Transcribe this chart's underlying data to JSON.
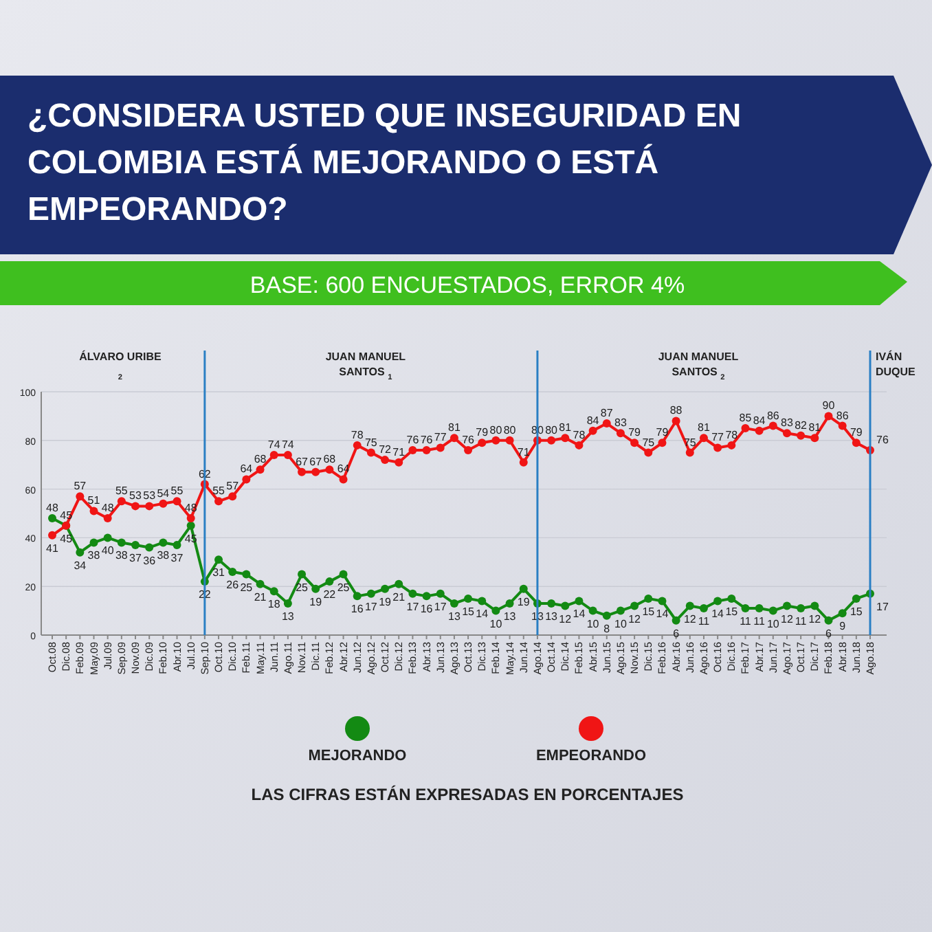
{
  "chart_data": {
    "type": "line",
    "title": "¿CONSIDERA USTED QUE INSEGURIDAD EN COLOMBIA ESTÁ MEJORANDO O ESTÁ EMPEORANDO?",
    "subtitle": "BASE: 600 ENCUESTADOS, ERROR 4%",
    "categories": [
      "Oct.08",
      "Dic.08",
      "Feb.09",
      "May.09",
      "Jul.09",
      "Sep.09",
      "Nov.09",
      "Dic.09",
      "Feb.10",
      "Abr.10",
      "Jul.10",
      "Sep.10",
      "Oct.10",
      "Dic.10",
      "Feb.11",
      "May.11",
      "Jun.11",
      "Ago.11",
      "Nov.11",
      "Dic.11",
      "Feb.12",
      "Abr.12",
      "Jun.12",
      "Ago.12",
      "Oct.12",
      "Dic.12",
      "Feb.13",
      "Abr.13",
      "Jun.13",
      "Ago.13",
      "Oct.13",
      "Dic.13",
      "Feb.14",
      "May.14",
      "Jun.14",
      "Ago.14",
      "Oct.14",
      "Dic.14",
      "Feb.15",
      "Abr.15",
      "Jun.15",
      "Ago.15",
      "Nov.15",
      "Dic.15",
      "Feb.16",
      "Abr.16",
      "Jun.16",
      "Ago.16",
      "Oct.16",
      "Dic.16",
      "Feb.17",
      "Abr.17",
      "Jun.17",
      "Ago.17",
      "Oct.17",
      "Dic.17",
      "Feb.18",
      "Abr.18",
      "Jun.18",
      "Ago.18"
    ],
    "series": [
      {
        "name": "MEJORANDO",
        "color": "#138a13",
        "values": [
          48,
          45,
          34,
          38,
          40,
          38,
          37,
          36,
          38,
          37,
          45,
          22,
          31,
          26,
          25,
          21,
          18,
          13,
          25,
          19,
          22,
          25,
          16,
          17,
          19,
          21,
          17,
          16,
          17,
          13,
          15,
          14,
          10,
          13,
          19,
          13,
          13,
          12,
          14,
          10,
          8,
          10,
          12,
          15,
          14,
          6,
          12,
          11,
          14,
          15,
          11,
          11,
          10,
          12,
          11,
          12,
          6,
          9,
          15,
          17
        ]
      },
      {
        "name": "EMPEORANDO",
        "color": "#f01515",
        "values": [
          41,
          45,
          57,
          51,
          48,
          55,
          53,
          53,
          54,
          55,
          48,
          62,
          55,
          57,
          64,
          68,
          74,
          74,
          67,
          67,
          68,
          64,
          78,
          75,
          72,
          71,
          76,
          76,
          77,
          81,
          76,
          79,
          80,
          80,
          71,
          80,
          80,
          81,
          78,
          84,
          87,
          83,
          79,
          75,
          79,
          88,
          75,
          81,
          77,
          78,
          85,
          84,
          86,
          83,
          82,
          81,
          90,
          86,
          79,
          76
        ]
      }
    ],
    "ylim": [
      0,
      100
    ],
    "yticks": [
      0,
      20,
      40,
      60,
      80,
      100
    ],
    "grid": "y",
    "marker": "circle",
    "line_style": "solid",
    "data_labels": true,
    "legend": "bottom",
    "ref_lines": [
      {
        "axis": "x",
        "value": "Sep.10",
        "color": "#2a7fc4"
      },
      {
        "axis": "x",
        "value": "Ago.14",
        "color": "#2a7fc4"
      },
      {
        "axis": "x",
        "value": "Ago.18",
        "color": "#2a7fc4"
      }
    ],
    "annotations": [
      "ÁLVARO URIBE $_{2}$",
      "JUAN MANUEL SANTOS $_{1}$",
      "JUAN MANUEL SANTOS $_{2}$",
      "IVÁN DUQUE",
      "LAS CIFRAS ESTÁN EXPRESADAS EN PORCENTAJES"
    ]
  }
}
